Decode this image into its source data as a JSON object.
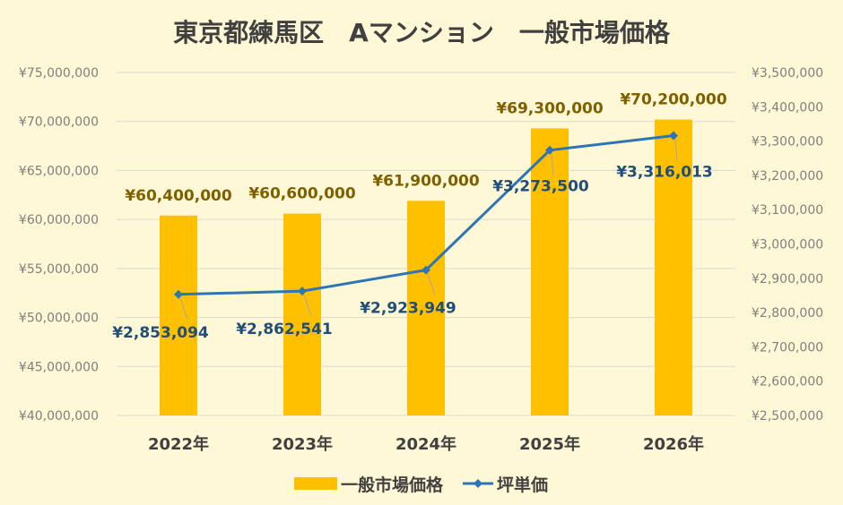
{
  "chart_data": {
    "type": "bar",
    "title": "東京都練馬区　Aマンション　一般市場価格",
    "categories": [
      "2022年",
      "2023年",
      "2024年",
      "2025年",
      "2026年"
    ],
    "series": [
      {
        "name": "一般市場価格",
        "type": "bar",
        "axis": "left",
        "color": "#ffc000",
        "values": [
          60400000,
          60600000,
          61900000,
          69300000,
          70200000
        ],
        "labels": [
          "¥60,400,000",
          "¥60,600,000",
          "¥61,900,000",
          "¥69,300,000",
          "¥70,200,000"
        ]
      },
      {
        "name": "坪単価",
        "type": "line",
        "axis": "right",
        "color": "#2e75b6",
        "values": [
          2853094,
          2862541,
          2923949,
          3273500,
          3316013
        ],
        "labels": [
          "¥2,853,094",
          "¥2,862,541",
          "¥2,923,949",
          "¥3,273,500",
          "¥3,316,013"
        ]
      }
    ],
    "ylim_left": [
      40000000,
      75000000
    ],
    "ylim_right": [
      2500000,
      3500000
    ],
    "yticks_left": [
      "¥40,000,000",
      "¥45,000,000",
      "¥50,000,000",
      "¥55,000,000",
      "¥60,000,000",
      "¥65,000,000",
      "¥70,000,000",
      "¥75,000,000"
    ],
    "yticks_right": [
      "¥2,500,000",
      "¥2,600,000",
      "¥2,700,000",
      "¥2,800,000",
      "¥2,900,000",
      "¥3,000,000",
      "¥3,100,000",
      "¥3,200,000",
      "¥3,300,000",
      "¥3,400,000",
      "¥3,500,000"
    ],
    "grid": true,
    "legend_position": "bottom"
  }
}
